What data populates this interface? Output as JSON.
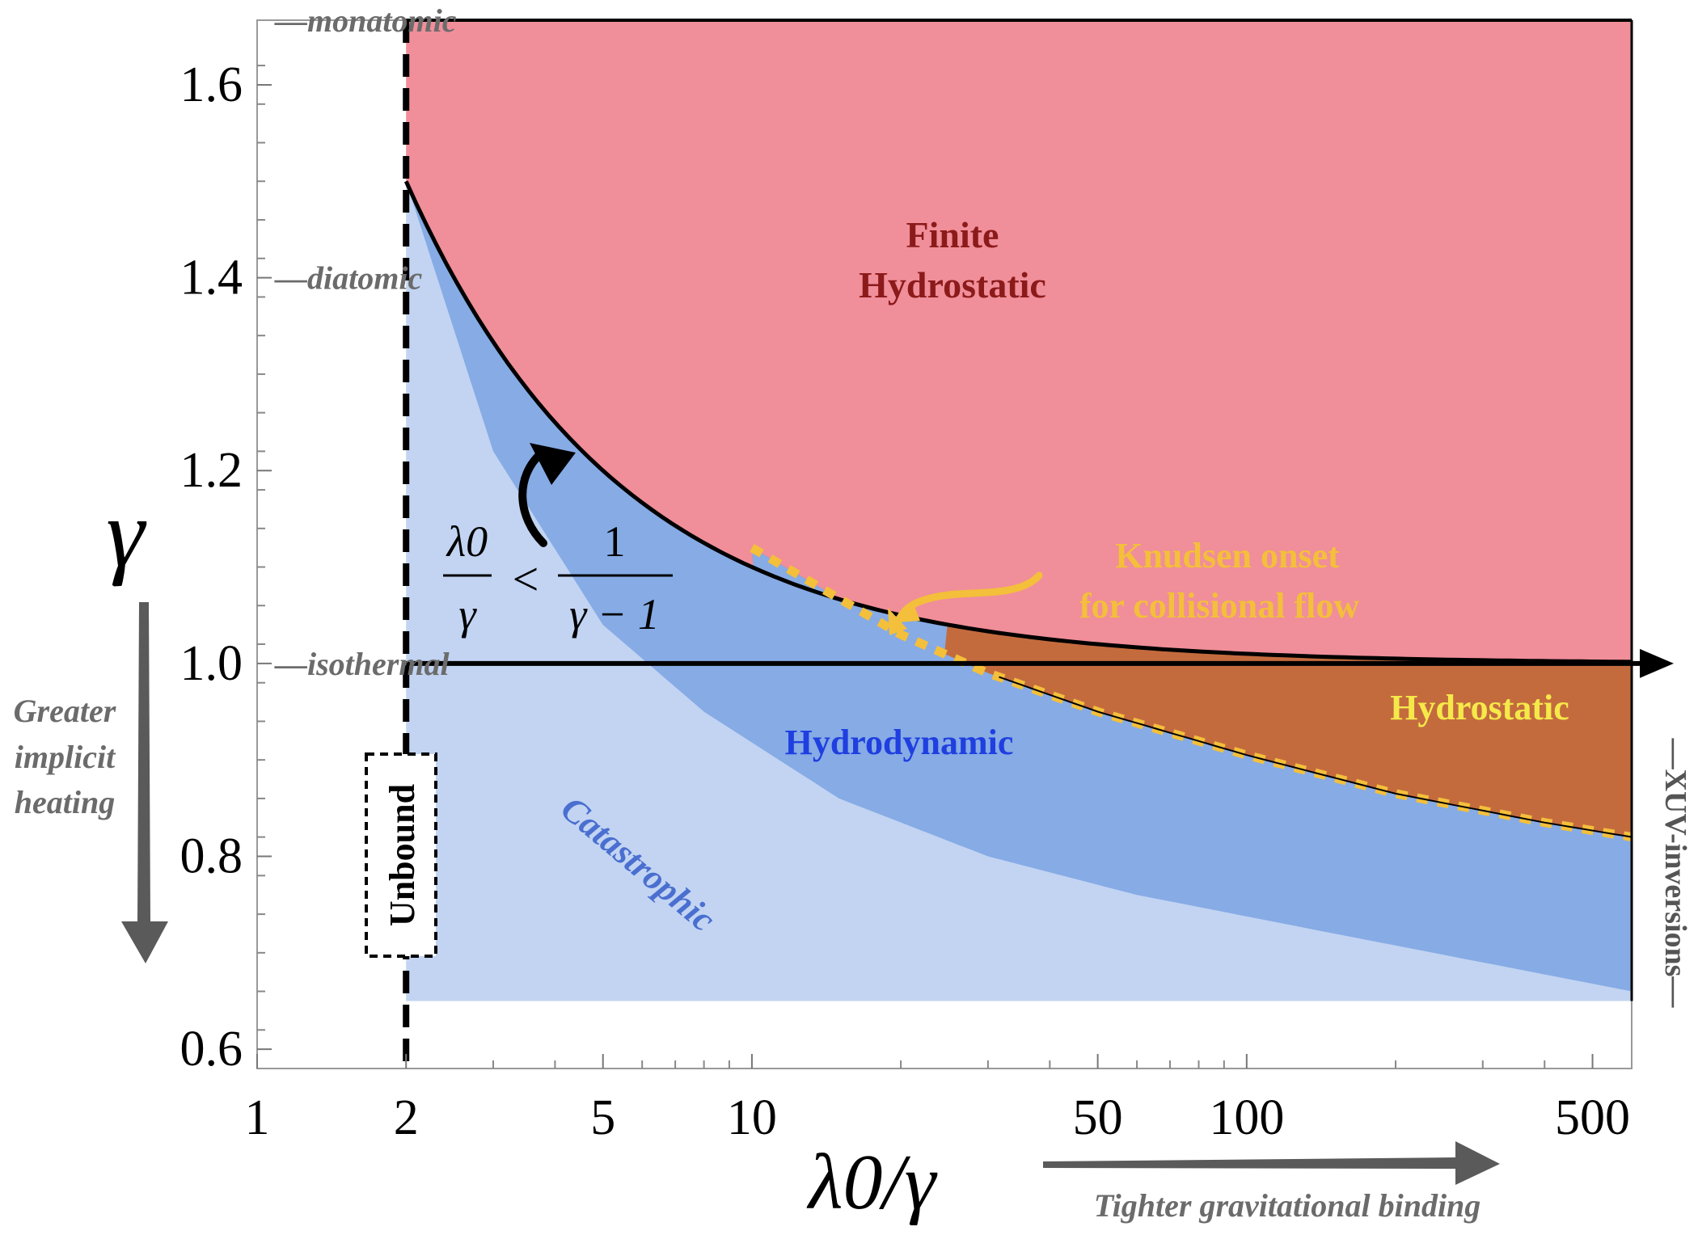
{
  "chart_data": {
    "type": "area",
    "x_scale": "log",
    "xlabel": "λ0/γ",
    "ylabel": "γ",
    "xlim": [
      1,
      600
    ],
    "ylim": [
      0.58,
      1.667
    ],
    "x_ticks": [
      {
        "value": 1,
        "label": "1"
      },
      {
        "value": 2,
        "label": "2"
      },
      {
        "value": 5,
        "label": "5"
      },
      {
        "value": 10,
        "label": "10"
      },
      {
        "value": 50,
        "label": "50"
      },
      {
        "value": 100,
        "label": "100"
      },
      {
        "value": 500,
        "label": "500"
      }
    ],
    "y_ticks": [
      {
        "value": 0.6,
        "label": "0.6"
      },
      {
        "value": 0.8,
        "label": "0.8"
      },
      {
        "value": 1.0,
        "label": "1.0"
      },
      {
        "value": 1.2,
        "label": "1.2"
      },
      {
        "value": 1.4,
        "label": "1.4"
      },
      {
        "value": 1.6,
        "label": "1.6"
      }
    ],
    "reference_lines": [
      {
        "gamma": 1.667,
        "label": "—monatomic"
      },
      {
        "gamma": 1.4,
        "label": "—diatomic"
      },
      {
        "gamma": 1.0,
        "label": "—isothermal"
      }
    ],
    "boundaries": {
      "unbound_x": 2,
      "gamma_min": 0.65,
      "finite_hydrostatic_curve": "gamma = 1 + 1/(λ0/γ)",
      "catastrophic_curve": [
        [
          2,
          1.5
        ],
        [
          3,
          1.22
        ],
        [
          5,
          1.04
        ],
        [
          8,
          0.95
        ],
        [
          15,
          0.86
        ],
        [
          30,
          0.8
        ],
        [
          60,
          0.76
        ],
        [
          150,
          0.72
        ],
        [
          300,
          0.69
        ],
        [
          600,
          0.66
        ]
      ],
      "knudsen_curve": [
        [
          10,
          1.12
        ],
        [
          20,
          1.03
        ],
        [
          30,
          0.99
        ],
        [
          50,
          0.95
        ],
        [
          100,
          0.905
        ],
        [
          200,
          0.865
        ],
        [
          400,
          0.835
        ],
        [
          600,
          0.82
        ]
      ]
    },
    "regions": {
      "finite_hydrostatic": {
        "label_line1": "Finite",
        "label_line2": "Hydrostatic",
        "color": "#f08e99"
      },
      "hydrostatic": {
        "label": "Hydrostatic",
        "color": "#c46b3e"
      },
      "hydrodynamic": {
        "label": "Hydrodynamic",
        "color": "#86abe5"
      },
      "catastrophic": {
        "label": "Catastrophic",
        "color": "#c2d4f2"
      }
    },
    "annotations": {
      "knudsen_line1": "Knudsen onset",
      "knudsen_line2": "for collisional flow",
      "unbound": "Unbound",
      "xuv": "—XUV-inversions—",
      "condition_left_num": "λ0",
      "condition_left_den": "γ",
      "condition_op": "<",
      "condition_right_num": "1",
      "condition_right_den": "γ − 1",
      "heating_line1": "Greater",
      "heating_line2": "implicit",
      "heating_line3": "heating",
      "binding": "Tighter gravitational binding"
    },
    "colors": {
      "finite_label": "#8b1a1a",
      "hydrostatic_label": "#f5e94a",
      "hydrodynamic_label": "#1f3fe0",
      "catastrophic_label": "#4a6fd0",
      "knudsen": "#f4bf3a",
      "note_gray": "#6b6b6b"
    }
  }
}
